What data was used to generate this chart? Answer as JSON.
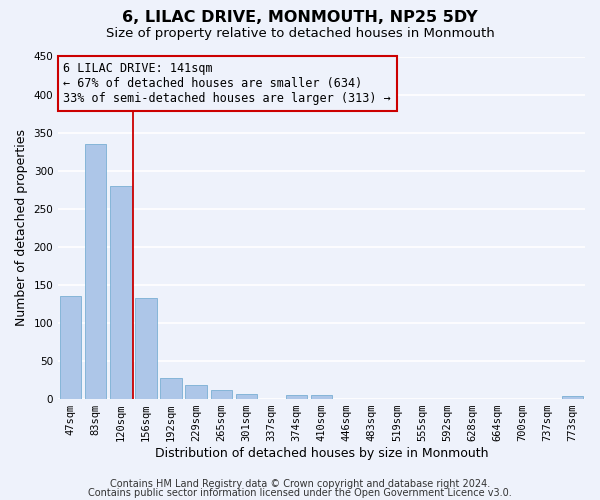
{
  "title": "6, LILAC DRIVE, MONMOUTH, NP25 5DY",
  "subtitle": "Size of property relative to detached houses in Monmouth",
  "xlabel": "Distribution of detached houses by size in Monmouth",
  "ylabel": "Number of detached properties",
  "footer_line1": "Contains HM Land Registry data © Crown copyright and database right 2024.",
  "footer_line2": "Contains public sector information licensed under the Open Government Licence v3.0.",
  "bar_labels": [
    "47sqm",
    "83sqm",
    "120sqm",
    "156sqm",
    "192sqm",
    "229sqm",
    "265sqm",
    "301sqm",
    "337sqm",
    "374sqm",
    "410sqm",
    "446sqm",
    "483sqm",
    "519sqm",
    "555sqm",
    "592sqm",
    "628sqm",
    "664sqm",
    "700sqm",
    "737sqm",
    "773sqm"
  ],
  "bar_values": [
    135,
    335,
    280,
    133,
    28,
    18,
    12,
    7,
    0,
    6,
    5,
    0,
    0,
    0,
    0,
    0,
    0,
    0,
    0,
    0,
    4
  ],
  "bar_color": "#adc6e8",
  "bar_edgecolor": "#7aafd4",
  "ylim": [
    0,
    450
  ],
  "yticks": [
    0,
    50,
    100,
    150,
    200,
    250,
    300,
    350,
    400,
    450
  ],
  "property_line_color": "#cc0000",
  "annotation_title": "6 LILAC DRIVE: 141sqm",
  "annotation_line1": "← 67% of detached houses are smaller (634)",
  "annotation_line2": "33% of semi-detached houses are larger (313) →",
  "annotation_box_color": "#cc0000",
  "background_color": "#eef2fb",
  "grid_color": "#ffffff",
  "title_fontsize": 11.5,
  "subtitle_fontsize": 9.5,
  "xlabel_fontsize": 9,
  "ylabel_fontsize": 9,
  "tick_fontsize": 7.5,
  "annotation_fontsize": 8.5,
  "footer_fontsize": 7
}
